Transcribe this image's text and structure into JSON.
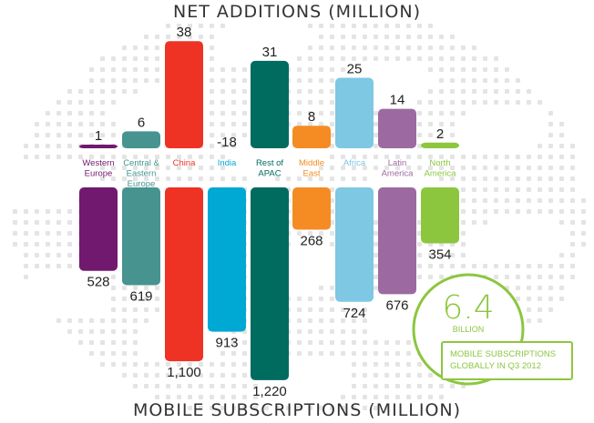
{
  "titles": {
    "top": "NET ADDITIONS (MILLION)",
    "bottom": "MOBILE SUBSCRIPTIONS (MILLION)"
  },
  "callout": {
    "value": "6.4",
    "unit": "BILLION",
    "caption_line1": "MOBILE SUBSCRIPTIONS",
    "caption_line2": "GLOBALLY IN Q3 2012"
  },
  "colors": {
    "western_europe": "#70196e",
    "central_eastern_europe": "#47938f",
    "china": "#ee3224",
    "india": "#00a8d4",
    "rest_of_apac": "#006b5f",
    "middle_east": "#f58c23",
    "africa": "#7ec8e3",
    "latin_america": "#9c6aa1",
    "north_america": "#8cc63f",
    "dots": "#e4e4e4"
  },
  "chart_data": {
    "type": "bar",
    "categories": [
      [
        "Western",
        "Europe"
      ],
      [
        "Central &",
        "Eastern",
        "Europe"
      ],
      [
        "China"
      ],
      [
        "India"
      ],
      [
        "Rest of",
        "APAC"
      ],
      [
        "Middle",
        "East"
      ],
      [
        "Africa"
      ],
      [
        "Latin",
        "America"
      ],
      [
        "North",
        "America"
      ]
    ],
    "series": [
      {
        "name": "NET ADDITIONS (MILLION)",
        "values": [
          1,
          6,
          38,
          -18,
          31,
          8,
          25,
          14,
          2
        ],
        "labels": [
          "1",
          "6",
          "38",
          "-18",
          "31",
          "8",
          "25",
          "14",
          "2"
        ]
      },
      {
        "name": "MOBILE SUBSCRIPTIONS (MILLION)",
        "values": [
          528,
          619,
          1100,
          913,
          1220,
          268,
          724,
          676,
          354
        ],
        "labels": [
          "528",
          "619",
          "1,100",
          "913",
          "1,220",
          "268",
          "724",
          "676",
          "354"
        ]
      }
    ],
    "title": "NET ADDITIONS (MILLION)",
    "xlabel": "MOBILE SUBSCRIPTIONS (MILLION)",
    "ylabel": ""
  }
}
